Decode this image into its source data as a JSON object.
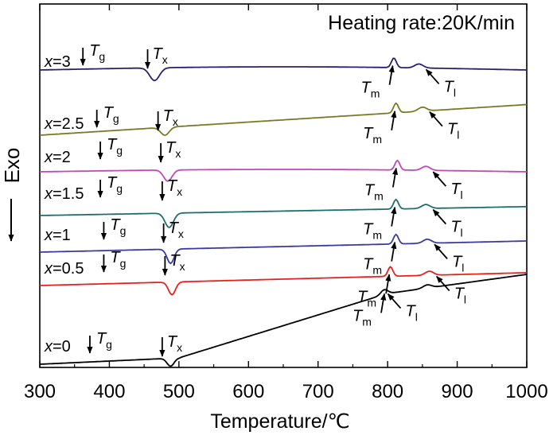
{
  "chart_data": {
    "type": "line",
    "title": "Heating rate:20K/min",
    "xlabel": "Temperature/℃",
    "ylabel": "Exo",
    "xlim": [
      300,
      1000
    ],
    "xticks": [
      "300",
      "400",
      "500",
      "600",
      "700",
      "800",
      "900",
      "1000"
    ],
    "annotation_labels": {
      "Tg": "T",
      "Tg_sub": "g",
      "Tx": "T",
      "Tx_sub": "x",
      "Tm": "T",
      "Tm_sub": "m",
      "Tl": "T",
      "Tl_sub": "l"
    },
    "series": [
      {
        "name": "x=3",
        "var": "x",
        "val": "=3",
        "color": "#2e1f6e",
        "Tg": 362,
        "Tx": 455,
        "Tm": 805,
        "Tl": 860
      },
      {
        "name": "x=2.5",
        "var": "x",
        "val": "=2.5",
        "color": "#7a7a26",
        "Tg": 382,
        "Tx": 470,
        "Tm": 808,
        "Tl": 865
      },
      {
        "name": "x=2",
        "var": "x",
        "val": "=2",
        "color": "#c546b8",
        "Tg": 387,
        "Tx": 474,
        "Tm": 810,
        "Tl": 870
      },
      {
        "name": "x=1.5",
        "var": "x",
        "val": "=1.5",
        "color": "#1c6f6e",
        "Tg": 387,
        "Tx": 476,
        "Tm": 808,
        "Tl": 870
      },
      {
        "name": "x=1",
        "var": "x",
        "val": "=1",
        "color": "#3b3b9e",
        "Tg": 392,
        "Tx": 478,
        "Tm": 808,
        "Tl": 872
      },
      {
        "name": "x=0.5",
        "var": "x",
        "val": "=0.5",
        "color": "#e5221c",
        "Tg": 392,
        "Tx": 480,
        "Tm": 800,
        "Tl": 875
      },
      {
        "name": "x=0",
        "var": "x",
        "val": "=0",
        "color": "#000000",
        "Tg": 372,
        "Tx": 476,
        "Tm": 793,
        "Tl": 805
      }
    ]
  }
}
